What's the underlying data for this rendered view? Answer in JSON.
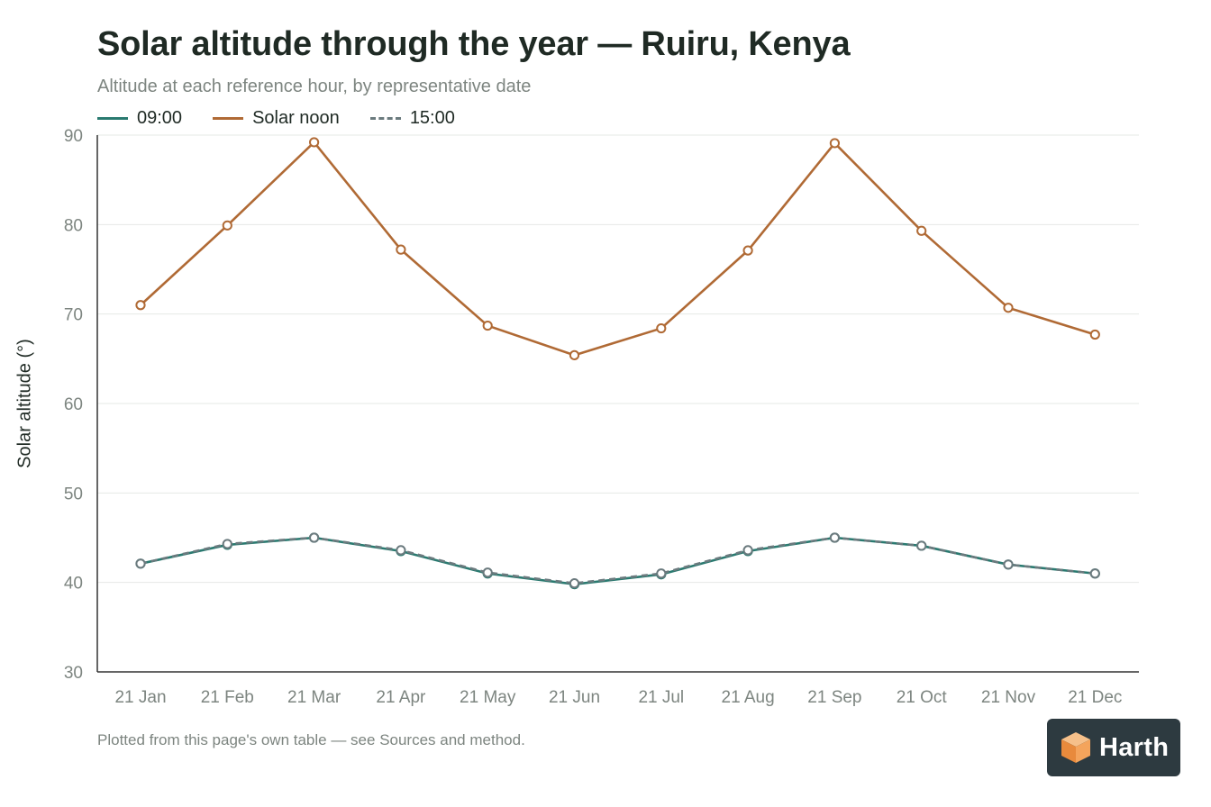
{
  "title": "Solar altitude through the year — Ruiru, Kenya",
  "subtitle": "Altitude at each reference hour, by representative date",
  "footnote": "Plotted from this page's own table — see Sources and method.",
  "logo": {
    "text": "Harth",
    "icon": "harth-cube-icon"
  },
  "colors": {
    "h0900": "#2a7a70",
    "noon": "#b06a35",
    "h1500": "#6b7a7e",
    "grid": "#e6e8e6",
    "axis": "#333333"
  },
  "chart_data": {
    "type": "line",
    "categories": [
      "21 Jan",
      "21 Feb",
      "21 Mar",
      "21 Apr",
      "21 May",
      "21 Jun",
      "21 Jul",
      "21 Aug",
      "21 Sep",
      "21 Oct",
      "21 Nov",
      "21 Dec"
    ],
    "ylabel": "Solar altitude (°)",
    "ylim": [
      30,
      90
    ],
    "yticks": [
      30,
      40,
      50,
      60,
      70,
      80,
      90
    ],
    "grid": true,
    "legend": "top-left",
    "series": [
      {
        "name": "09:00",
        "style": "solid",
        "color": "#2a7a70",
        "values": [
          42.1,
          44.2,
          45.0,
          43.5,
          41.0,
          39.8,
          40.9,
          43.5,
          45.0,
          44.1,
          42.0,
          41.0
        ]
      },
      {
        "name": "Solar noon",
        "style": "solid",
        "color": "#b06a35",
        "values": [
          71.0,
          79.9,
          89.2,
          77.2,
          68.7,
          65.4,
          68.4,
          77.1,
          89.1,
          79.3,
          70.7,
          67.7
        ]
      },
      {
        "name": "15:00",
        "style": "dashed",
        "color": "#6b7a7e",
        "values": [
          42.1,
          44.3,
          45.0,
          43.6,
          41.1,
          39.9,
          41.0,
          43.6,
          45.0,
          44.1,
          42.0,
          41.0
        ]
      }
    ]
  }
}
